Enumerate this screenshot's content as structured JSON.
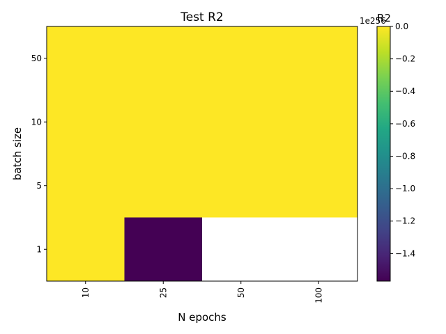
{
  "chart_data": {
    "type": "heatmap",
    "title": "Test R2",
    "xlabel": "N epochs",
    "ylabel": "batch size",
    "x_categories": [
      "10",
      "25",
      "50",
      "100"
    ],
    "y_categories": [
      "50",
      "10",
      "5",
      "1"
    ],
    "values": [
      [
        0,
        0,
        0,
        0
      ],
      [
        0,
        0,
        0,
        0
      ],
      [
        0,
        0,
        0,
        0
      ],
      [
        0,
        -1.57e+256,
        null,
        null
      ]
    ],
    "colorbar": {
      "label": "R2",
      "offset_text": "1e256",
      "scale": 1e+256,
      "vmin": -1.57e+256,
      "vmax": 0,
      "ticks": [
        0.0,
        -0.2,
        -0.4,
        -0.6,
        -0.8,
        -1.0,
        -1.2,
        -1.4
      ],
      "tick_labels": [
        "0.0",
        "−0.2",
        "−0.4",
        "−0.6",
        "−0.8",
        "−1.0",
        "−1.2",
        "−1.4"
      ],
      "colormap": "viridis"
    },
    "missing_color": "#ffffff",
    "grid": false
  }
}
